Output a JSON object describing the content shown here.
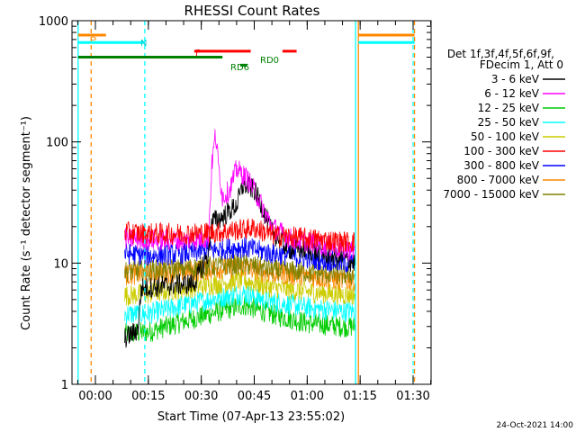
{
  "chart_data": {
    "type": "line",
    "title": "RHESSI Count Rates",
    "xlabel": "Start Time (07-Apr-13 23:55:02)",
    "ylabel": "Count Rate (s⁻¹ detector segment⁻¹)",
    "yscale": "log",
    "ylim": [
      1,
      1000
    ],
    "xlim_minutes": [
      -4.9,
      36.0
    ],
    "xtick_labels": [
      "00:00",
      "00:15",
      "00:30",
      "00:45",
      "01:00",
      "01:15",
      "01:30"
    ],
    "xtick_minutes": [
      0,
      15,
      30,
      45,
      60,
      75,
      90
    ],
    "ytick_labels": [
      "1",
      "10",
      "100",
      "1000"
    ],
    "ytick_values": [
      1,
      10,
      100,
      1000
    ],
    "legend_header": [
      "Det 1f,3f,4f,5f,6f,9f,",
      "FDecim 1, Att 0"
    ],
    "legend_position": "right",
    "footer_date": "24-Oct-2021 14:00",
    "data_window_minutes": [
      8.3,
      73.5
    ],
    "series": [
      {
        "name": "3 - 6 keV",
        "color": "#000000",
        "points": [
          [
            8.3,
            2.4
          ],
          [
            12,
            2.8
          ],
          [
            13,
            6.2
          ],
          [
            20,
            6.5
          ],
          [
            28,
            6.8
          ],
          [
            32,
            12
          ],
          [
            33,
            22
          ],
          [
            36,
            24
          ],
          [
            40,
            30
          ],
          [
            42,
            45
          ],
          [
            45,
            40
          ],
          [
            47,
            30
          ],
          [
            50,
            18
          ],
          [
            55,
            13
          ],
          [
            60,
            13
          ],
          [
            65,
            12
          ],
          [
            70,
            11
          ],
          [
            73.5,
            10
          ]
        ]
      },
      {
        "name": "6 - 12 keV",
        "color": "#ff00ff",
        "points": [
          [
            8.3,
            16
          ],
          [
            15,
            15.5
          ],
          [
            25,
            15.5
          ],
          [
            32,
            16
          ],
          [
            33,
            65
          ],
          [
            34,
            115
          ],
          [
            35,
            60
          ],
          [
            36,
            35
          ],
          [
            38,
            40
          ],
          [
            40,
            60
          ],
          [
            43,
            50
          ],
          [
            45,
            40
          ],
          [
            47,
            30
          ],
          [
            50,
            20
          ],
          [
            55,
            16
          ],
          [
            60,
            15
          ],
          [
            65,
            14
          ],
          [
            70,
            13
          ],
          [
            73.5,
            12.5
          ]
        ]
      },
      {
        "name": "12 - 25 keV",
        "color": "#00cc00",
        "points": [
          [
            8.3,
            2.6
          ],
          [
            15,
            2.7
          ],
          [
            25,
            3.3
          ],
          [
            35,
            4
          ],
          [
            42,
            4.5
          ],
          [
            50,
            3.8
          ],
          [
            60,
            3.2
          ],
          [
            70,
            3
          ],
          [
            73.5,
            3
          ]
        ]
      },
      {
        "name": "25 - 50 keV",
        "color": "#00ffff",
        "points": [
          [
            8.3,
            3.8
          ],
          [
            15,
            3.8
          ],
          [
            25,
            4.5
          ],
          [
            35,
            5.2
          ],
          [
            42,
            5.6
          ],
          [
            50,
            4.8
          ],
          [
            60,
            4.3
          ],
          [
            70,
            4
          ],
          [
            73.5,
            4
          ]
        ]
      },
      {
        "name": "50 - 100 keV",
        "color": "#cccc00",
        "points": [
          [
            8.3,
            5.4
          ],
          [
            15,
            5.6
          ],
          [
            25,
            6.2
          ],
          [
            35,
            6.8
          ],
          [
            42,
            7.2
          ],
          [
            50,
            6.3
          ],
          [
            60,
            5.8
          ],
          [
            70,
            5.5
          ],
          [
            73.5,
            5.5
          ]
        ]
      },
      {
        "name": "100 - 300 keV",
        "color": "#ff0000",
        "points": [
          [
            8.3,
            18
          ],
          [
            15,
            17.5
          ],
          [
            25,
            17.5
          ],
          [
            35,
            18
          ],
          [
            42,
            19
          ],
          [
            45,
            19.5
          ],
          [
            50,
            17
          ],
          [
            60,
            16
          ],
          [
            70,
            15
          ],
          [
            73.5,
            15
          ]
        ]
      },
      {
        "name": "300 - 800 keV",
        "color": "#0000ff",
        "points": [
          [
            8.3,
            12
          ],
          [
            15,
            11.5
          ],
          [
            25,
            12
          ],
          [
            35,
            13
          ],
          [
            42,
            13.5
          ],
          [
            50,
            12
          ],
          [
            60,
            11
          ],
          [
            70,
            10
          ],
          [
            73.5,
            10
          ]
        ]
      },
      {
        "name": "800 - 7000 keV",
        "color": "#ff8800",
        "points": [
          [
            8.3,
            8
          ],
          [
            15,
            8.2
          ],
          [
            25,
            8.5
          ],
          [
            35,
            9
          ],
          [
            42,
            9.2
          ],
          [
            50,
            8.3
          ],
          [
            60,
            7.8
          ],
          [
            70,
            7.2
          ],
          [
            73.5,
            7.2
          ]
        ]
      },
      {
        "name": "7000 - 15000 keV",
        "color": "#808000",
        "points": [
          [
            8.3,
            8.5
          ],
          [
            15,
            8.7
          ],
          [
            25,
            9
          ],
          [
            35,
            9.5
          ],
          [
            42,
            9.8
          ],
          [
            50,
            8.8
          ],
          [
            60,
            8.4
          ],
          [
            70,
            8
          ],
          [
            73.5,
            8
          ]
        ]
      }
    ],
    "flag_bars": [
      {
        "label": "S",
        "color": "#ff8800",
        "value_y": 760,
        "segments_minutes": [
          [
            -4.9,
            3
          ]
        ]
      },
      {
        "label": "N",
        "color": "#00ffff",
        "value_y": 660,
        "segments_minutes": [
          [
            -4.9,
            14
          ]
        ]
      },
      {
        "label": "F",
        "color": "#ff0000",
        "value_y": 560,
        "segments_minutes": [
          [
            28,
            44
          ],
          [
            53,
            57
          ]
        ]
      },
      {
        "label": "RD6",
        "color": "#008000",
        "value_y": 430,
        "segments_minutes": [
          [
            41,
            43
          ]
        ]
      },
      {
        "label": "RD0",
        "color": "#008000",
        "value_y": 500,
        "segments_minutes": [
          [
            -4.9,
            36
          ]
        ]
      }
    ],
    "vertical_markers": [
      {
        "color": "#00ffff",
        "style": "solid",
        "minute": -4.9
      },
      {
        "color": "#ff8800",
        "style": "dashed",
        "minute": -1.2
      },
      {
        "color": "#00ffff",
        "style": "dashed",
        "minute": 14.0
      },
      {
        "color": "#00ffff",
        "style": "solid",
        "minute": 73.7
      },
      {
        "color": "#ff8800",
        "style": "solid",
        "minute": 74.5
      },
      {
        "color": "#00ffff",
        "style": "dashed",
        "minute": 90.0
      },
      {
        "color": "#ff8800",
        "style": "dashed",
        "minute": 90.4
      }
    ],
    "right_flag_bars": [
      {
        "color": "#ff8800",
        "value_y": 760,
        "segments_minutes": [
          [
            74.5,
            90.4
          ]
        ]
      },
      {
        "color": "#00ffff",
        "value_y": 660,
        "segments_minutes": [
          [
            74.5,
            90.4
          ]
        ]
      }
    ]
  }
}
